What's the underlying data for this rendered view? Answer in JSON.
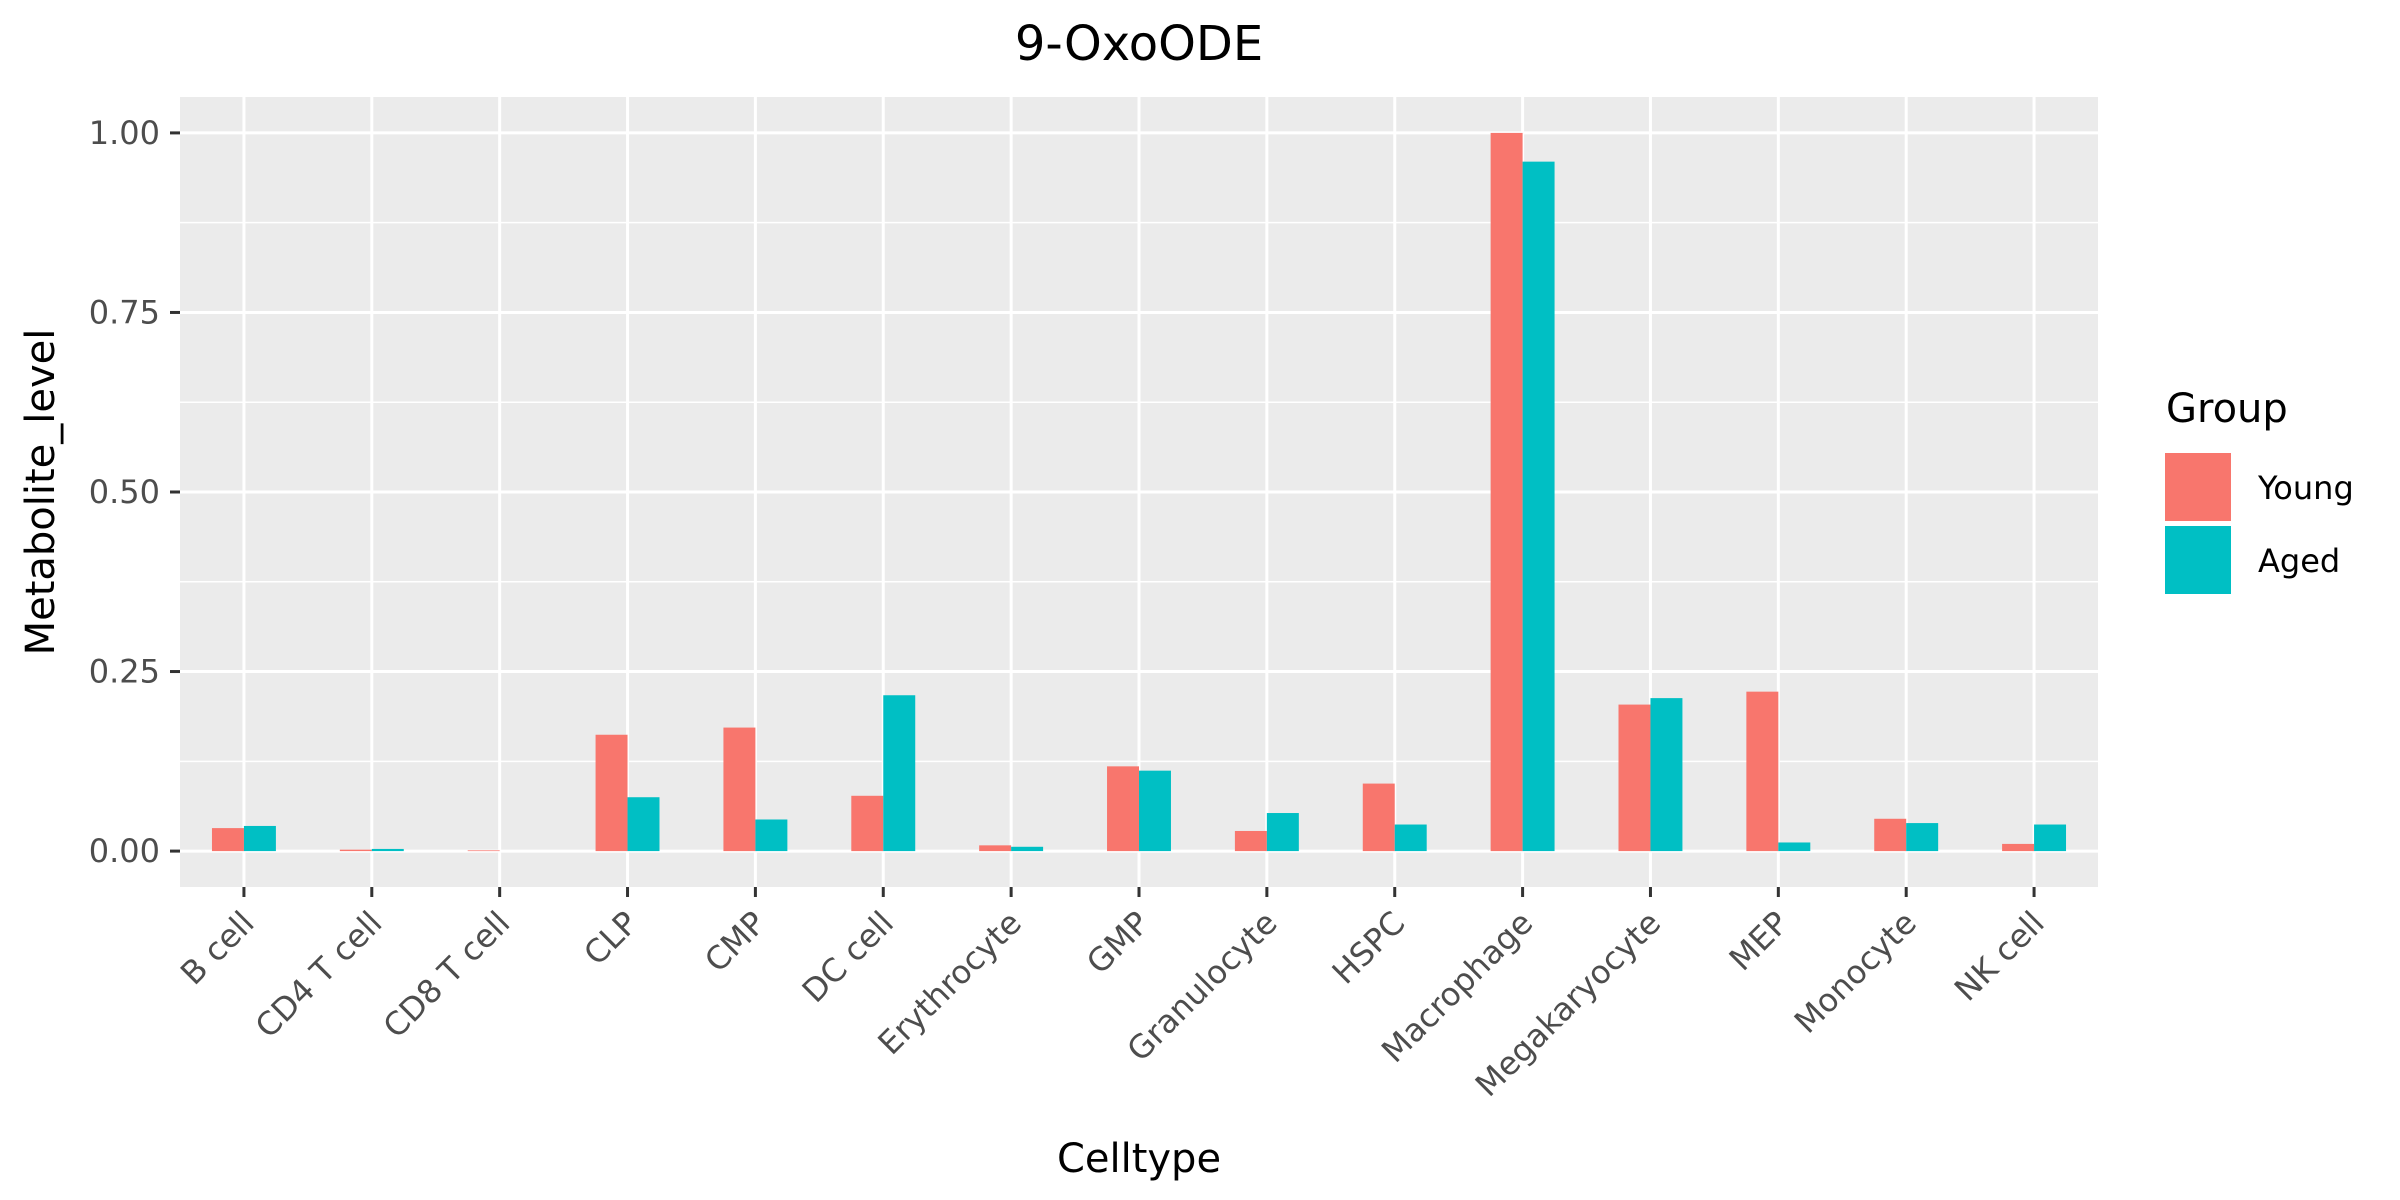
{
  "chart_data": {
    "type": "bar",
    "title": "9-OxoODE",
    "xlabel": "Celltype",
    "ylabel": "Metabolite_level",
    "categories": [
      "B cell",
      "CD4 T cell",
      "CD8 T cell",
      "CLP",
      "CMP",
      "DC cell",
      "Erythrocyte",
      "GMP",
      "Granulocyte",
      "HSPC",
      "Macrophage",
      "Megakaryocyte",
      "MEP",
      "Monocyte",
      "NK cell"
    ],
    "series": [
      {
        "name": "Young",
        "color": "#F8766D",
        "values": [
          0.032,
          0.002,
          0.001,
          0.162,
          0.172,
          0.077,
          0.008,
          0.118,
          0.028,
          0.094,
          1.0,
          0.204,
          0.222,
          0.045,
          0.01
        ]
      },
      {
        "name": "Aged",
        "color": "#00BFC4",
        "values": [
          0.035,
          0.003,
          0.0,
          0.075,
          0.044,
          0.217,
          0.006,
          0.112,
          0.053,
          0.037,
          0.96,
          0.213,
          0.012,
          0.039,
          0.037
        ]
      }
    ],
    "ylim": [
      -0.05,
      1.05
    ],
    "yticks": [
      0.0,
      0.25,
      0.5,
      0.75,
      1.0
    ],
    "ytick_labels": [
      "0.00",
      "0.25",
      "0.50",
      "0.75",
      "1.00"
    ],
    "legend_title": "Group",
    "legend_position": "right",
    "grid": true,
    "panel_background": "#EBEBEB"
  }
}
